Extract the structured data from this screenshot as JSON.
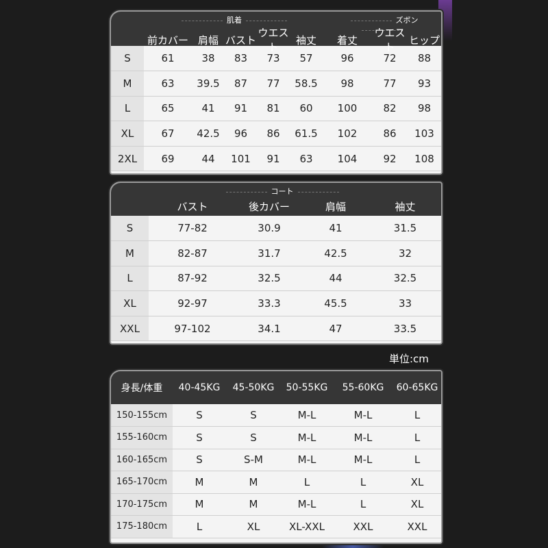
{
  "table1": {
    "group_top": "肌着",
    "group_bottom": "ズボン",
    "headers": [
      "",
      "前カバー",
      "肩幅",
      "バスト",
      "ウエスト",
      "袖丈",
      "着丈",
      "ウエスト",
      "ヒップ"
    ],
    "rows": [
      [
        "S",
        "61",
        "38",
        "83",
        "73",
        "57",
        "96",
        "72",
        "88"
      ],
      [
        "M",
        "63",
        "39.5",
        "87",
        "77",
        "58.5",
        "98",
        "77",
        "93"
      ],
      [
        "L",
        "65",
        "41",
        "91",
        "81",
        "60",
        "100",
        "82",
        "98"
      ],
      [
        "XL",
        "67",
        "42.5",
        "96",
        "86",
        "61.5",
        "102",
        "86",
        "103"
      ],
      [
        "2XL",
        "69",
        "44",
        "101",
        "91",
        "63",
        "104",
        "92",
        "108"
      ]
    ]
  },
  "table2": {
    "group": "コート",
    "headers": [
      "",
      "バスト",
      "後カバー",
      "肩幅",
      "袖丈"
    ],
    "rows": [
      [
        "S",
        "77-82",
        "30.9",
        "41",
        "31.5"
      ],
      [
        "M",
        "82-87",
        "31.7",
        "42.5",
        "32"
      ],
      [
        "L",
        "87-92",
        "32.5",
        "44",
        "32.5"
      ],
      [
        "XL",
        "92-97",
        "33.3",
        "45.5",
        "33"
      ],
      [
        "XXL",
        "97-102",
        "34.1",
        "47",
        "33.5"
      ]
    ]
  },
  "unit": "単位:cm",
  "table3": {
    "headers": [
      "身長/体重",
      "40-45KG",
      "45-50KG",
      "50-55KG",
      "55-60KG",
      "60-65KG"
    ],
    "rows": [
      [
        "150-155cm",
        "S",
        "S",
        "M-L",
        "M-L",
        "L"
      ],
      [
        "155-160cm",
        "S",
        "S",
        "M-L",
        "M-L",
        "L"
      ],
      [
        "160-165cm",
        "S",
        "S-M",
        "M-L",
        "M-L",
        "L"
      ],
      [
        "165-170cm",
        "M",
        "M",
        "L",
        "L",
        "XL"
      ],
      [
        "170-175cm",
        "M",
        "M",
        "M-L",
        "L",
        "XL"
      ],
      [
        "175-180cm",
        "L",
        "XL",
        "XL-XXL",
        "XXL",
        "XXL"
      ]
    ]
  },
  "colors": {
    "background": "#1c1c1c",
    "header": "#363636",
    "body": "#f4f4f4",
    "label_cell": "#e4e4e4"
  }
}
